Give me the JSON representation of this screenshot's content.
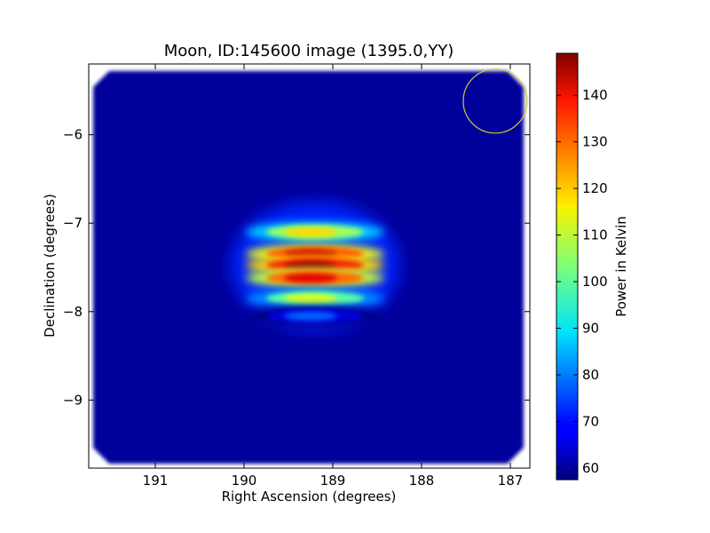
{
  "chart_data": {
    "type": "heatmap",
    "title": "Moon, ID:145600 image (1395.0,YY)",
    "xlabel": "Right Ascension (degrees)",
    "ylabel": "Declination (degrees)",
    "xlim": [
      191.75,
      186.78
    ],
    "ylim": [
      -9.77,
      -5.2
    ],
    "x_ticks": [
      {
        "value": 191,
        "label": "191"
      },
      {
        "value": 190,
        "label": "190"
      },
      {
        "value": 189,
        "label": "189"
      },
      {
        "value": 188,
        "label": "188"
      },
      {
        "value": 187,
        "label": "187"
      }
    ],
    "y_ticks": [
      {
        "value": -6,
        "label": "−6"
      },
      {
        "value": -7,
        "label": "−7"
      },
      {
        "value": -8,
        "label": "−8"
      },
      {
        "value": -9,
        "label": "−9"
      }
    ],
    "colorbar": {
      "label": "Power in Kelvin",
      "range": [
        57.5,
        149
      ],
      "colormap": "jet",
      "ticks": [
        {
          "value": 60,
          "label": "60"
        },
        {
          "value": 70,
          "label": "70"
        },
        {
          "value": 80,
          "label": "80"
        },
        {
          "value": 90,
          "label": "90"
        },
        {
          "value": 100,
          "label": "100"
        },
        {
          "value": 110,
          "label": "110"
        },
        {
          "value": 120,
          "label": "120"
        },
        {
          "value": 130,
          "label": "130"
        },
        {
          "value": 140,
          "label": "140"
        }
      ]
    },
    "map_region": {
      "ra_range": [
        191.7,
        186.85
      ],
      "dec_range": [
        -9.72,
        -5.28
      ],
      "background_kelvin": 60
    },
    "source": {
      "center_ra": 189.2,
      "center_dec": -7.48,
      "peak_kelvin": 148,
      "fringe_rows": [
        {
          "dec": -7.1,
          "kelvin": 118
        },
        {
          "dec": -7.35,
          "kelvin": 143
        },
        {
          "dec": -7.48,
          "kelvin": 148
        },
        {
          "dec": -7.62,
          "kelvin": 140
        },
        {
          "dec": -7.85,
          "kelvin": 112
        },
        {
          "dec": -8.05,
          "kelvin": 78
        }
      ]
    },
    "beam_marker": {
      "center_ra": 187.17,
      "center_dec": -5.62,
      "radius_deg": 0.36,
      "color": "#cccc33"
    }
  }
}
